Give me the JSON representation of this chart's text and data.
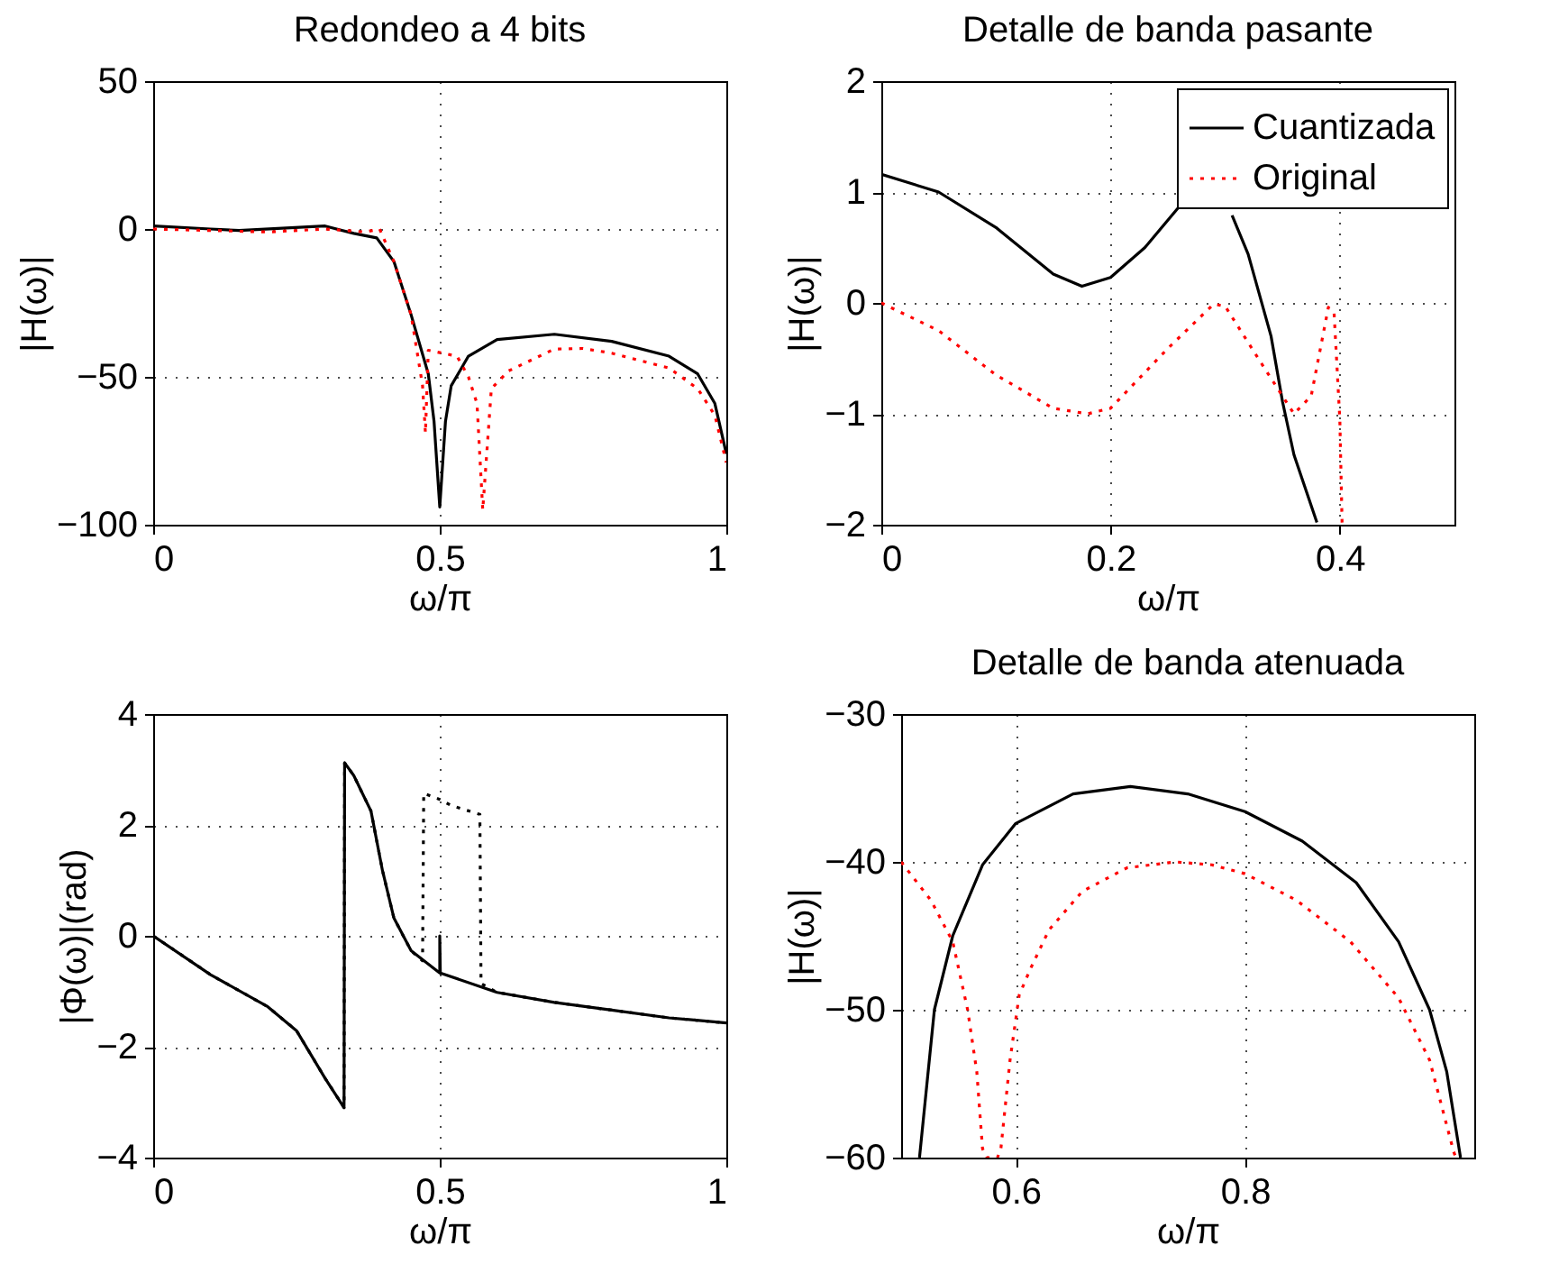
{
  "chart_data": [
    {
      "type": "line",
      "title": "Redondeo a 4 bits",
      "xlabel": "ω/π",
      "ylabel": "|H(ω)|",
      "xlim": [
        0,
        1
      ],
      "xticks": [
        0,
        0.5,
        1
      ],
      "ylim": [
        -100,
        50
      ],
      "yticks": [
        -100,
        -50,
        0,
        50
      ],
      "grid": true,
      "series": [
        {
          "color": "#000000",
          "line_style": "solid",
          "x": [
            0,
            0.1,
            0.15,
            0.3,
            0.35,
            0.39,
            0.42,
            0.45,
            0.48,
            0.49,
            0.5,
            0.51,
            0.52,
            0.55,
            0.6,
            0.7,
            0.8,
            0.9,
            0.95,
            0.98,
            1
          ],
          "values": [
            1,
            0,
            -0.5,
            1,
            -1.5,
            -3,
            -11,
            -29,
            -49,
            -65,
            -94,
            -65,
            -53,
            -43,
            -37.4,
            -35.6,
            -38,
            -43,
            -49,
            -59,
            -76
          ]
        },
        {
          "color": "#ff0000",
          "line_style": "dotted",
          "x": [
            0,
            0.2,
            0.3,
            0.37,
            0.395,
            0.42,
            0.45,
            0.47,
            0.475,
            0.48,
            0.53,
            0.55,
            0.565,
            0.575,
            0.59,
            0.62,
            0.7,
            0.75,
            0.8,
            0.9,
            0.95,
            0.98,
            1
          ],
          "values": [
            0,
            -1,
            0,
            -1,
            0,
            -11,
            -29,
            -53,
            -69,
            -41,
            -43,
            -50,
            -59,
            -95,
            -54,
            -48,
            -40.6,
            -40.4,
            -42,
            -47,
            -54,
            -63,
            -79
          ]
        }
      ]
    },
    {
      "type": "line",
      "title": "Detalle de banda pasante",
      "xlabel": "ω/π",
      "ylabel": "|H(ω)|",
      "xlim": [
        0,
        0.5
      ],
      "xticks": [
        0,
        0.2,
        0.4
      ],
      "ylim": [
        -2,
        2
      ],
      "yticks": [
        -2,
        -1,
        0,
        1,
        2
      ],
      "grid": true,
      "legend": "top right",
      "series": [
        {
          "name": "Cuantizada",
          "color": "#000000",
          "line_style": "solid",
          "x": [
            0,
            0.05,
            0.1,
            0.15,
            0.175,
            0.2,
            0.23,
            0.26,
            0.28,
            0.306,
            0.32,
            0.34,
            0.35,
            0.36,
            0.38
          ],
          "values": [
            1.16,
            1.0,
            0.68,
            0.26,
            0.15,
            0.23,
            0.5,
            0.87,
            null,
            0.79,
            0.44,
            -0.3,
            -0.89,
            -1.37,
            -1.98
          ]
        },
        {
          "name": "Original",
          "color": "#ff0000",
          "line_style": "dotted",
          "x": [
            0,
            0.05,
            0.1,
            0.15,
            0.18,
            0.2,
            0.25,
            0.29,
            0.3,
            0.33,
            0.36,
            0.375,
            0.39,
            0.395,
            0.4,
            0.402
          ],
          "values": [
            0,
            -0.25,
            -0.65,
            -0.95,
            -1,
            -0.95,
            -0.41,
            -0.01,
            -0.03,
            -0.52,
            -1,
            -0.84,
            -0.04,
            -0.09,
            -1.05,
            -2
          ]
        }
      ]
    },
    {
      "type": "line",
      "xlabel": "ω/π",
      "ylabel": "|Φ(ω)|(rad)",
      "xlim": [
        0,
        1
      ],
      "xticks": [
        0,
        0.5,
        1
      ],
      "ylim": [
        -4,
        4
      ],
      "yticks": [
        -4,
        -2,
        0,
        2,
        4
      ],
      "grid": true,
      "series": [
        {
          "color": "#000000",
          "line_style": "solid",
          "x": [
            0,
            0.1,
            0.2,
            0.25,
            0.3,
            0.333,
            0.334,
            0.35,
            0.38,
            0.4,
            0.42,
            0.45,
            0.5,
            0.5,
            0.501,
            0.6,
            0.7,
            0.8,
            0.9,
            1
          ],
          "values": [
            0,
            -0.7,
            -1.28,
            -1.71,
            -2.57,
            -3.1,
            3.12,
            2.89,
            2.25,
            1.18,
            0.32,
            -0.27,
            -0.67,
            0,
            -0.67,
            -1.02,
            -1.2,
            -1.34,
            -1.48,
            -1.57
          ]
        },
        {
          "color": "#000000",
          "line_style": "dotted",
          "x": [
            0,
            0.1,
            0.2,
            0.25,
            0.3,
            0.333,
            0.334,
            0.35,
            0.38,
            0.4,
            0.42,
            0.45,
            0.47,
            0.472,
            0.5,
            0.52,
            0.57,
            0.572,
            0.6,
            0.7,
            0.8,
            0.9,
            1
          ],
          "values": [
            0,
            -0.7,
            -1.28,
            -1.71,
            -2.57,
            -3.1,
            3.12,
            2.89,
            2.25,
            1.18,
            0.32,
            -0.27,
            -0.45,
            2.57,
            2.46,
            2.35,
            2.19,
            -0.86,
            -1.02,
            -1.2,
            -1.34,
            -1.48,
            -1.57
          ]
        }
      ]
    },
    {
      "type": "line",
      "title": "Detalle de banda atenuada",
      "xlabel": "ω/π",
      "ylabel": "|H(ω)|",
      "xlim": [
        0.5,
        1
      ],
      "xticks": [
        0.6,
        0.8
      ],
      "ylim": [
        -60,
        -30
      ],
      "yticks": [
        -60,
        -50,
        -40,
        -30
      ],
      "grid": true,
      "series": [
        {
          "color": "#000000",
          "line_style": "solid",
          "x": [
            0.516,
            0.529,
            0.545,
            0.571,
            0.6,
            0.65,
            0.7,
            0.75,
            0.8,
            0.85,
            0.897,
            0.934,
            0.961,
            0.976,
            0.988
          ],
          "values": [
            -60,
            -50,
            -45,
            -40.2,
            -37.4,
            -35.4,
            -34.9,
            -35.4,
            -36.6,
            -38.6,
            -41.4,
            -45.4,
            -50,
            -54.2,
            -60
          ]
        },
        {
          "color": "#ff0000",
          "line_style": "dotted",
          "x": [
            0.5,
            0.526,
            0.545,
            0.558,
            0.566,
            0.571,
            0.575,
            0.584,
            0.587,
            0.595,
            0.603,
            0.613,
            0.629,
            0.658,
            0.697,
            0.739,
            0.771,
            0.8,
            0.845,
            0.892,
            0.934,
            0.961,
            0.982,
            0.984
          ],
          "values": [
            -40,
            -42.6,
            -45.4,
            -50,
            -54.2,
            -59.4,
            -60,
            -60,
            -59.4,
            -53.4,
            -49,
            -47.2,
            -44.6,
            -42,
            -40.4,
            -40,
            -40.2,
            -40.8,
            -42.6,
            -45.4,
            -49.2,
            -53.4,
            -59.6,
            -60
          ]
        }
      ]
    }
  ]
}
